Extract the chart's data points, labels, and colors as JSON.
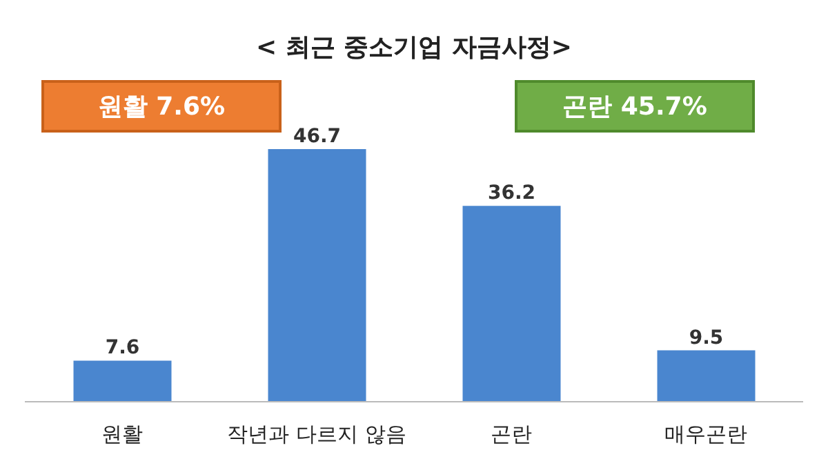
{
  "chart_data": {
    "type": "bar",
    "title": "< 최근 중소기업 자금사정>",
    "categories": [
      "원활",
      "작년과 다르지 않음",
      "곤란",
      "매우곤란"
    ],
    "values": [
      7.6,
      46.7,
      36.2,
      9.5
    ],
    "color": "#4a86cf",
    "data_labels": true,
    "annotations": [
      "원활 7.6%",
      "곤란 45.7%"
    ]
  }
}
